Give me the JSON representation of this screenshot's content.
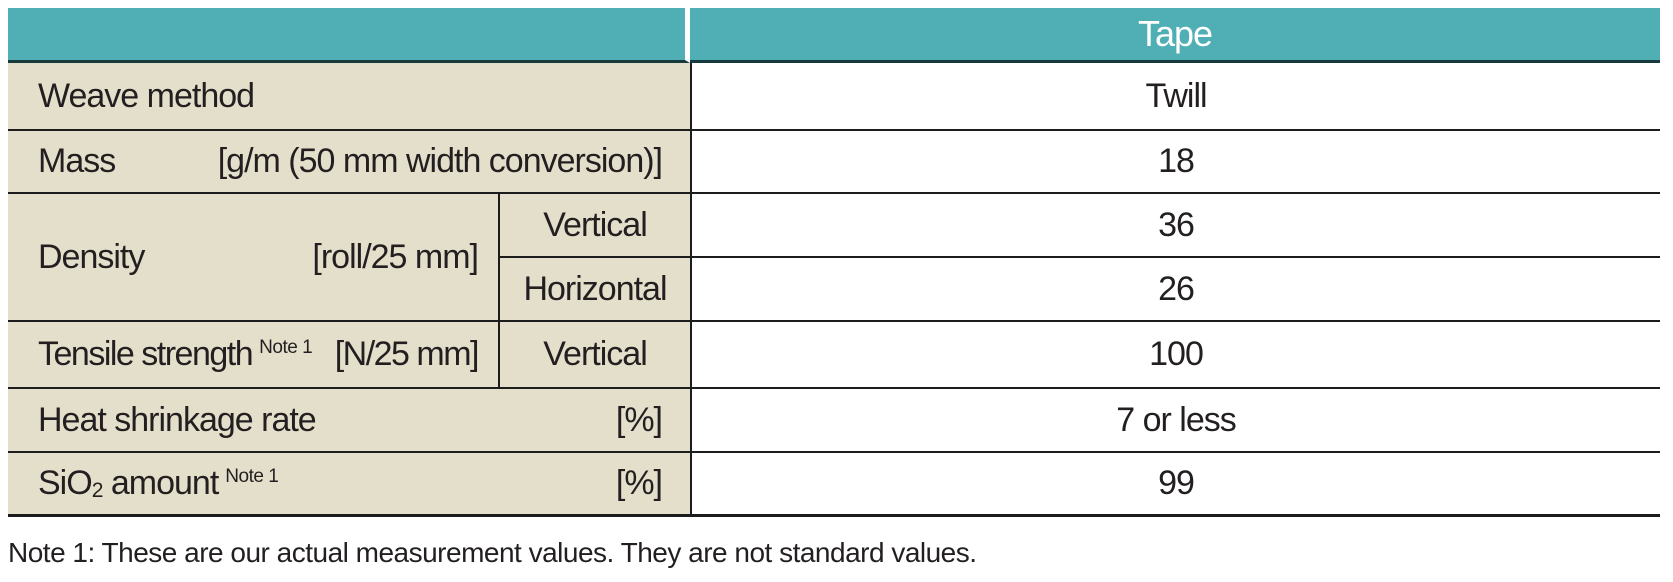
{
  "colors": {
    "header_bg": "#4fafb4",
    "header_text": "#ffffff",
    "label_bg": "#e4dfcb",
    "value_bg": "#ffffff",
    "grid_line": "#1c1c1c",
    "header_underline": "#173a3c",
    "body_text": "#231f20"
  },
  "table": {
    "header": {
      "tape": "Tape"
    },
    "rows": {
      "weave": {
        "label": "Weave method",
        "value": "Twill"
      },
      "mass": {
        "label": "Mass",
        "unit": "[g/m (50 mm width conversion)]",
        "value": "18"
      },
      "density": {
        "label": "Density",
        "unit": "[roll/25 mm]",
        "vertical_label": "Vertical",
        "vertical_value": "36",
        "horizontal_label": "Horizontal",
        "horizontal_value": "26"
      },
      "tensile": {
        "label": "Tensile strength",
        "note_ref": "Note 1",
        "unit": "[N/25 mm]",
        "sub_label": "Vertical",
        "value": "100"
      },
      "heat_shrinkage": {
        "label": "Heat shrinkage rate",
        "unit": "[%]",
        "value": "7 or less"
      },
      "sio2": {
        "label_prefix": "SiO",
        "subscript": "2",
        "label_suffix": " amount",
        "note_ref": "Note 1",
        "unit": "[%]",
        "value": "99"
      }
    }
  },
  "footnote": "Note 1: These are our actual measurement values. They are not standard values."
}
